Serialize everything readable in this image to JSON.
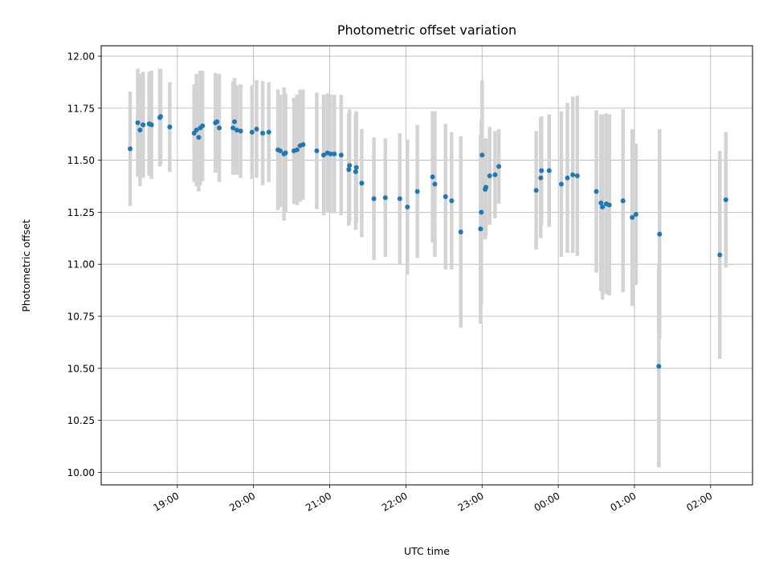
{
  "chart_data": {
    "type": "scatter",
    "title": "Photometric offset variation",
    "xlabel": "UTC time",
    "ylabel": "Photometric offset",
    "ylim": [
      9.94,
      12.05
    ],
    "xlim_hours": [
      18.0,
      26.55
    ],
    "yticks": [
      10.0,
      10.25,
      10.5,
      10.75,
      11.0,
      11.25,
      11.5,
      11.75,
      12.0
    ],
    "xticks": [
      {
        "h": 19,
        "label": "19:00"
      },
      {
        "h": 20,
        "label": "20:00"
      },
      {
        "h": 21,
        "label": "21:00"
      },
      {
        "h": 22,
        "label": "22:00"
      },
      {
        "h": 23,
        "label": "23:00"
      },
      {
        "h": 24,
        "label": "00:00"
      },
      {
        "h": 25,
        "label": "01:00"
      },
      {
        "h": 26,
        "label": "02:00"
      }
    ],
    "grid": true,
    "marker_color": "#1f77b4",
    "errorbar_color": "#d3d3d3",
    "points": [
      [
        18.38,
        11.555,
        0.275
      ],
      [
        18.48,
        11.68,
        0.26
      ],
      [
        18.51,
        11.645,
        0.27
      ],
      [
        18.55,
        11.67,
        0.255
      ],
      [
        18.63,
        11.675,
        0.25
      ],
      [
        18.66,
        11.67,
        0.26
      ],
      [
        18.77,
        11.705,
        0.235
      ],
      [
        18.78,
        11.71,
        0.23
      ],
      [
        18.9,
        11.66,
        0.215
      ],
      [
        19.22,
        11.63,
        0.235
      ],
      [
        19.25,
        11.645,
        0.27
      ],
      [
        19.28,
        11.61,
        0.26
      ],
      [
        19.3,
        11.655,
        0.275
      ],
      [
        19.33,
        11.665,
        0.265
      ],
      [
        19.5,
        11.68,
        0.24
      ],
      [
        19.52,
        11.685,
        0.225
      ],
      [
        19.55,
        11.655,
        0.26
      ],
      [
        19.73,
        11.655,
        0.225
      ],
      [
        19.75,
        11.685,
        0.21
      ],
      [
        19.78,
        11.645,
        0.215
      ],
      [
        19.83,
        11.64,
        0.225
      ],
      [
        19.98,
        11.635,
        0.225
      ],
      [
        20.04,
        11.65,
        0.235
      ],
      [
        20.12,
        11.63,
        0.25
      ],
      [
        20.2,
        11.635,
        0.24
      ],
      [
        20.32,
        11.55,
        0.29
      ],
      [
        20.35,
        11.545,
        0.27
      ],
      [
        20.4,
        11.53,
        0.32
      ],
      [
        20.42,
        11.535,
        0.285
      ],
      [
        20.53,
        11.545,
        0.255
      ],
      [
        20.57,
        11.55,
        0.265
      ],
      [
        20.61,
        11.57,
        0.27
      ],
      [
        20.65,
        11.575,
        0.265
      ],
      [
        20.83,
        11.545,
        0.28
      ],
      [
        20.92,
        11.525,
        0.29
      ],
      [
        20.97,
        11.535,
        0.285
      ],
      [
        21.01,
        11.53,
        0.285
      ],
      [
        21.06,
        11.53,
        0.285
      ],
      [
        21.15,
        11.525,
        0.29
      ],
      [
        21.25,
        11.455,
        0.27
      ],
      [
        21.26,
        11.475,
        0.27
      ],
      [
        21.34,
        11.445,
        0.28
      ],
      [
        21.35,
        11.465,
        0.27
      ],
      [
        21.42,
        11.39,
        0.26
      ],
      [
        21.58,
        11.315,
        0.295
      ],
      [
        21.73,
        11.32,
        0.285
      ],
      [
        21.92,
        11.315,
        0.315
      ],
      [
        22.02,
        11.275,
        0.325
      ],
      [
        22.15,
        11.35,
        0.32
      ],
      [
        22.35,
        11.42,
        0.315
      ],
      [
        22.38,
        11.385,
        0.35
      ],
      [
        22.52,
        11.325,
        0.35
      ],
      [
        22.6,
        11.305,
        0.33
      ],
      [
        22.72,
        11.155,
        0.46
      ],
      [
        22.98,
        11.17,
        0.455
      ],
      [
        22.99,
        11.25,
        0.445
      ],
      [
        23.0,
        11.525,
        0.36
      ],
      [
        23.04,
        11.36,
        0.24
      ],
      [
        23.05,
        11.37,
        0.235
      ],
      [
        23.1,
        11.425,
        0.235
      ],
      [
        23.17,
        11.43,
        0.21
      ],
      [
        23.22,
        11.47,
        0.18
      ],
      [
        23.71,
        11.355,
        0.285
      ],
      [
        23.77,
        11.415,
        0.29
      ],
      [
        23.78,
        11.45,
        0.26
      ],
      [
        23.88,
        11.45,
        0.27
      ],
      [
        24.04,
        11.385,
        0.35
      ],
      [
        24.12,
        11.415,
        0.36
      ],
      [
        24.19,
        11.43,
        0.375
      ],
      [
        24.25,
        11.425,
        0.385
      ],
      [
        24.5,
        11.35,
        0.39
      ],
      [
        24.56,
        11.295,
        0.425
      ],
      [
        24.58,
        11.275,
        0.445
      ],
      [
        24.63,
        11.29,
        0.435
      ],
      [
        24.67,
        11.285,
        0.435
      ],
      [
        24.85,
        11.305,
        0.44
      ],
      [
        24.97,
        11.225,
        0.425
      ],
      [
        25.02,
        11.24,
        0.34
      ],
      [
        25.32,
        10.51,
        0.485
      ],
      [
        25.33,
        11.145,
        0.505
      ],
      [
        26.12,
        11.045,
        0.5
      ],
      [
        26.2,
        11.31,
        0.325
      ]
    ]
  }
}
